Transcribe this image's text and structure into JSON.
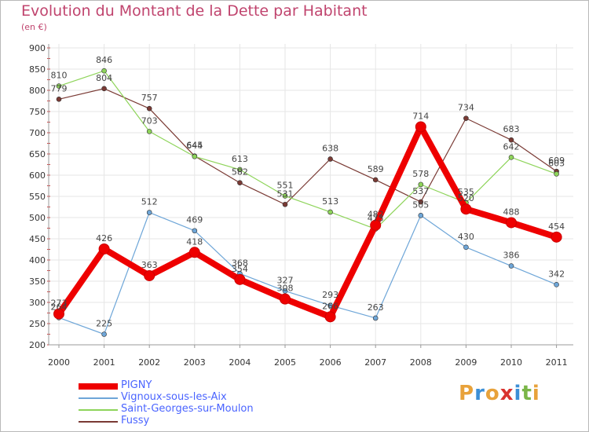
{
  "header": {
    "title": "Evolution du Montant de la Dette par Habitant",
    "subtitle": "(en €)"
  },
  "brand": {
    "name": "Proxiti",
    "letters": [
      "P",
      "r",
      "o",
      "x",
      "i",
      "t",
      "i"
    ],
    "colors": [
      "#e8a23a",
      "#3c8fd6",
      "#e8a23a",
      "#d9322e",
      "#3c8fd6",
      "#7ab648",
      "#e8a23a"
    ]
  },
  "chart_data": {
    "type": "line",
    "title": "Evolution du Montant de la Dette par Habitant",
    "ylabel": "(en €)",
    "xlabel": "",
    "ylim": [
      200,
      900
    ],
    "yticks": [
      200,
      250,
      300,
      350,
      400,
      450,
      500,
      550,
      600,
      650,
      700,
      750,
      800,
      850,
      900
    ],
    "grid": true,
    "legend_position": "bottom-left",
    "categories": [
      "2000",
      "2001",
      "2002",
      "2003",
      "2004",
      "2005",
      "2006",
      "2007",
      "2008",
      "2009",
      "2010",
      "2011"
    ],
    "series": [
      {
        "name": "PIGNY",
        "color": "#ee0000",
        "values": [
          273,
          426,
          363,
          418,
          354,
          308,
          266,
          482,
          714,
          520,
          488,
          454
        ]
      },
      {
        "name": "Vignoux-sous-les-Aix",
        "color": "#6ea6d8",
        "values": [
          264,
          225,
          512,
          469,
          368,
          327,
          293,
          263,
          505,
          430,
          386,
          342
        ]
      },
      {
        "name": "Saint-Georges-sur-Moulon",
        "color": "#8ed45a",
        "values": [
          810,
          846,
          703,
          644,
          613,
          551,
          513,
          473,
          578,
          535,
          642,
          603
        ]
      },
      {
        "name": "Fussy",
        "color": "#7a3a34",
        "values": [
          779,
          804,
          757,
          645,
          582,
          531,
          638,
          589,
          537,
          734,
          683,
          609
        ]
      }
    ]
  }
}
